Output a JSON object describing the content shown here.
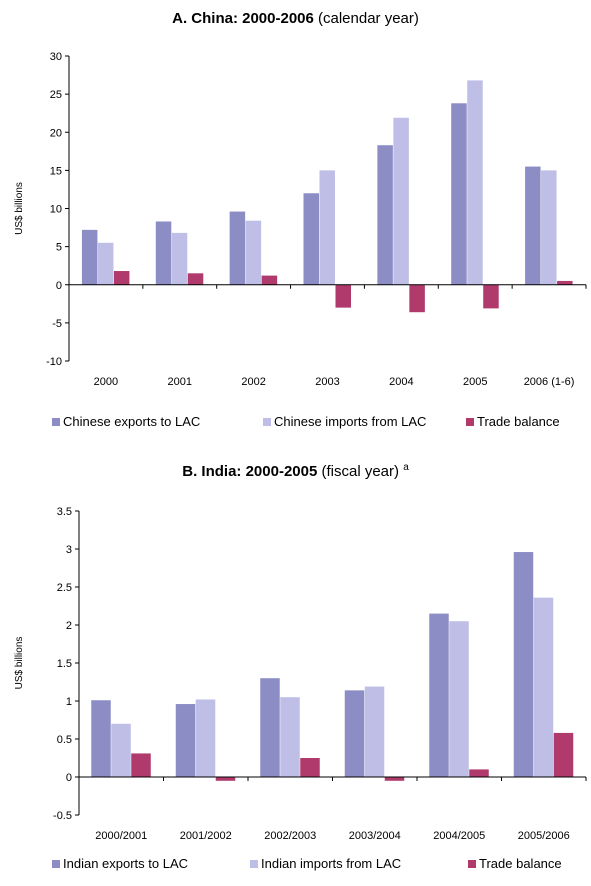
{
  "charts": [
    {
      "title_bold": "A. China: 2000-2006",
      "title_rest": " (calendar year)",
      "title_sup": "",
      "legend": [
        "Chinese exports to LAC",
        "Chinese imports from LAC",
        "Trade balance"
      ]
    },
    {
      "title_bold": "B. India: 2000-2005",
      "title_rest": " (fiscal year)",
      "title_sup": "a",
      "legend": [
        "Indian exports to LAC",
        "Indian imports from LAC",
        "Trade balance"
      ]
    }
  ],
  "colors": [
    "#8d8dc6",
    "#bebee6",
    "#b03a6c"
  ],
  "chart_data": [
    {
      "type": "bar",
      "title": "A. China: 2000-2006 (calendar year)",
      "ylabel": "US$ billions",
      "xlabel": "",
      "ylim": [
        -10,
        30
      ],
      "yticks": [
        -10,
        -5,
        0,
        5,
        10,
        15,
        20,
        25,
        30
      ],
      "ytick_labels": [
        "-10",
        "-5",
        "0",
        "5",
        "10",
        "15",
        "20",
        "25",
        "30"
      ],
      "categories": [
        "2000",
        "2001",
        "2002",
        "2003",
        "2004",
        "2005",
        "2006 (1-6)"
      ],
      "series": [
        {
          "name": "Chinese exports to LAC",
          "values": [
            7.2,
            8.3,
            9.6,
            12.0,
            18.3,
            23.8,
            15.5
          ]
        },
        {
          "name": "Chinese imports from LAC",
          "values": [
            5.5,
            6.8,
            8.4,
            15.0,
            21.9,
            26.8,
            15.0
          ]
        },
        {
          "name": "Trade balance",
          "values": [
            1.8,
            1.5,
            1.2,
            -3.0,
            -3.6,
            -3.1,
            0.5
          ]
        }
      ],
      "legend_position": "bottom",
      "grid": false
    },
    {
      "type": "bar",
      "title": "B. India: 2000-2005 (fiscal year) a",
      "ylabel": "US$ billions",
      "xlabel": "",
      "ylim": [
        -0.5,
        3.5
      ],
      "yticks": [
        -0.5,
        0,
        0.5,
        1,
        1.5,
        2,
        2.5,
        3,
        3.5
      ],
      "ytick_labels": [
        "-0.5",
        "0",
        "0.5",
        "1",
        "1.5",
        "2",
        "2.5",
        "3",
        "3.5"
      ],
      "categories": [
        "2000/2001",
        "2001/2002",
        "2002/2003",
        "2003/2004",
        "2004/2005",
        "2005/2006"
      ],
      "series": [
        {
          "name": "Indian exports to LAC",
          "values": [
            1.01,
            0.96,
            1.3,
            1.14,
            2.15,
            2.96
          ]
        },
        {
          "name": "Indian imports from LAC",
          "values": [
            0.7,
            1.02,
            1.05,
            1.19,
            2.05,
            2.36
          ]
        },
        {
          "name": "Trade balance",
          "values": [
            0.31,
            -0.05,
            0.25,
            -0.05,
            0.1,
            0.58
          ]
        }
      ],
      "legend_position": "bottom",
      "grid": false
    }
  ]
}
